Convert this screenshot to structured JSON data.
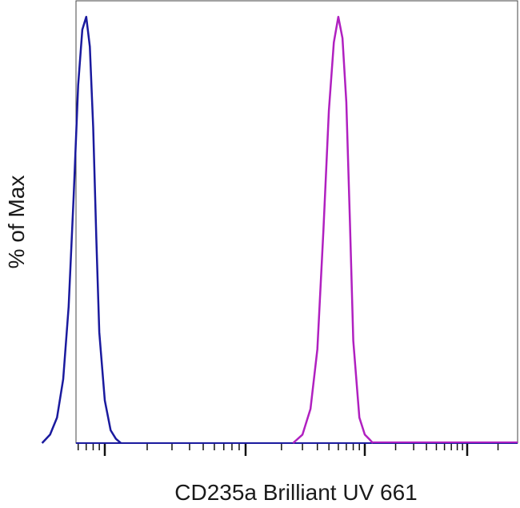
{
  "chart_data": {
    "type": "line",
    "title": "",
    "xlabel": "CD235a Brilliant UV 661",
    "ylabel": "% of Max",
    "x_scale": "log",
    "xlim": [
      -40,
      1000000
    ],
    "ylim": [
      0,
      100
    ],
    "grid": false,
    "legend": "none",
    "series": [
      {
        "color": "#1a1a9e",
        "x": [
          30,
          35,
          40,
          45,
          50,
          55,
          60,
          65,
          70,
          75,
          80,
          85,
          90,
          100,
          110,
          120,
          130
        ],
        "y": [
          0,
          2,
          6,
          15,
          32,
          58,
          84,
          97,
          100,
          93,
          74,
          48,
          26,
          10,
          3,
          1,
          0
        ]
      },
      {
        "color": "#b020c0",
        "x": [
          2500,
          3000,
          3500,
          4000,
          4500,
          5000,
          5500,
          6000,
          6500,
          7000,
          7500,
          8000,
          9000,
          10000,
          11000,
          12000
        ],
        "y": [
          0,
          2,
          8,
          22,
          50,
          78,
          94,
          100,
          95,
          80,
          52,
          24,
          6,
          2,
          1,
          0
        ]
      }
    ]
  }
}
